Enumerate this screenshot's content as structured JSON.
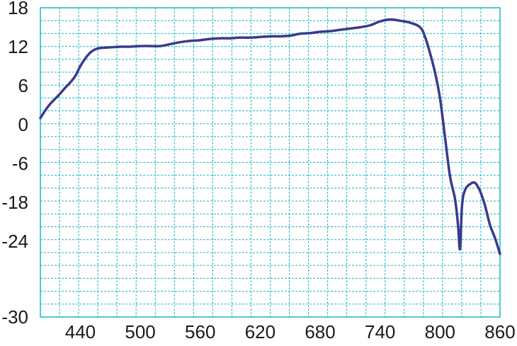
{
  "chart_data": {
    "type": "line",
    "title": "",
    "xlabel": "",
    "ylabel": "",
    "x_ticks": [
      "440",
      "500",
      "560",
      "620",
      "680",
      "740",
      "800",
      "860"
    ],
    "y_ticks": [
      "18",
      "12",
      "6",
      "0",
      "-6",
      "-18",
      "-24",
      "-30"
    ],
    "grid": true,
    "colors": {
      "line": "#3a3a8c",
      "grid": "#19b8c8",
      "axis": "#19b8c8",
      "text": "#1a1a1a"
    },
    "series": [
      {
        "values": [
          [
            400,
            1
          ],
          [
            405,
            2.2
          ],
          [
            410,
            3.2
          ],
          [
            415,
            4.0
          ],
          [
            420,
            4.8
          ],
          [
            425,
            5.7
          ],
          [
            430,
            6.5
          ],
          [
            435,
            7.5
          ],
          [
            440,
            9.0
          ],
          [
            445,
            10.2
          ],
          [
            450,
            11.1
          ],
          [
            455,
            11.6
          ],
          [
            460,
            11.8
          ],
          [
            470,
            11.9
          ],
          [
            480,
            12.0
          ],
          [
            490,
            12.0
          ],
          [
            500,
            12.1
          ],
          [
            510,
            12.1
          ],
          [
            520,
            12.1
          ],
          [
            530,
            12.4
          ],
          [
            540,
            12.7
          ],
          [
            550,
            12.9
          ],
          [
            560,
            13.0
          ],
          [
            570,
            13.2
          ],
          [
            580,
            13.3
          ],
          [
            590,
            13.3
          ],
          [
            600,
            13.4
          ],
          [
            610,
            13.4
          ],
          [
            620,
            13.5
          ],
          [
            630,
            13.6
          ],
          [
            640,
            13.6
          ],
          [
            650,
            13.7
          ],
          [
            660,
            14.0
          ],
          [
            670,
            14.1
          ],
          [
            680,
            14.3
          ],
          [
            690,
            14.4
          ],
          [
            700,
            14.6
          ],
          [
            710,
            14.8
          ],
          [
            720,
            15.0
          ],
          [
            730,
            15.3
          ],
          [
            740,
            15.9
          ],
          [
            750,
            16.2
          ],
          [
            760,
            16.0
          ],
          [
            770,
            15.7
          ],
          [
            780,
            15.0
          ],
          [
            785,
            13.5
          ],
          [
            790,
            11.0
          ],
          [
            795,
            8.0
          ],
          [
            800,
            4.0
          ],
          [
            805,
            -2.0
          ],
          [
            810,
            -10.0
          ],
          [
            815,
            -17.0
          ],
          [
            818,
            -21.5
          ],
          [
            820,
            -24.6
          ],
          [
            822,
            -18.5
          ],
          [
            825,
            -14.2
          ],
          [
            830,
            -12.4
          ],
          [
            835,
            -12.0
          ],
          [
            840,
            -14.5
          ],
          [
            845,
            -18.5
          ],
          [
            850,
            -21.5
          ],
          [
            855,
            -23.5
          ],
          [
            860,
            -25.0
          ]
        ]
      }
    ]
  }
}
